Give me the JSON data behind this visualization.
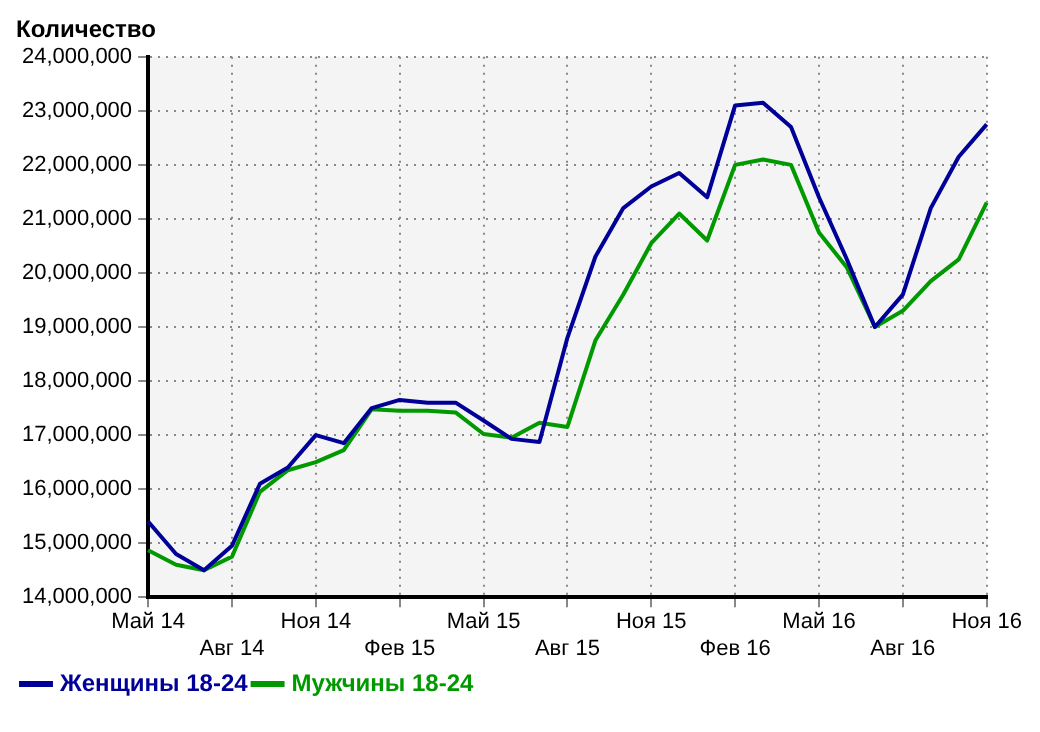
{
  "chart_data": {
    "type": "line",
    "title": "Количество",
    "categories": [
      "Май 14",
      null,
      null,
      "Авг 14",
      null,
      null,
      "Ноя 14",
      null,
      null,
      "Фев 15",
      null,
      null,
      "Май 15",
      null,
      null,
      "Авг 15",
      null,
      null,
      "Ноя 15",
      null,
      null,
      "Фев 16",
      null,
      null,
      "Май 16",
      null,
      null,
      "Авг 16",
      null,
      null,
      "Ноя 16"
    ],
    "series": [
      {
        "name": "Женщины 18-24",
        "color": "#000099",
        "values": [
          15400000,
          14800000,
          14500000,
          14950000,
          16100000,
          16400000,
          17000000,
          16850000,
          17500000,
          17650000,
          17600000,
          17600000,
          17270000,
          16930000,
          16870000,
          18800000,
          20300000,
          21200000,
          21600000,
          21850000,
          21400000,
          23100000,
          23150000,
          22700000,
          21400000,
          20250000,
          19000000,
          19600000,
          21200000,
          22150000,
          22750000
        ]
      },
      {
        "name": "Мужчины 18-24",
        "color": "#009900",
        "values": [
          14870000,
          14600000,
          14500000,
          14750000,
          15950000,
          16350000,
          16500000,
          16720000,
          17480000,
          17450000,
          17450000,
          17420000,
          17020000,
          16950000,
          17230000,
          17150000,
          18750000,
          19600000,
          20550000,
          21100000,
          20600000,
          22000000,
          22100000,
          22000000,
          20750000,
          20100000,
          19000000,
          19300000,
          19850000,
          20250000,
          21300000
        ]
      }
    ],
    "ylim": [
      14000000,
      24000000
    ],
    "yticks": [
      {
        "value": 14000000,
        "label": "14,000,000"
      },
      {
        "value": 15000000,
        "label": "15,000,000"
      },
      {
        "value": 16000000,
        "label": "16,000,000"
      },
      {
        "value": 17000000,
        "label": "17,000,000"
      },
      {
        "value": 18000000,
        "label": "18,000,000"
      },
      {
        "value": 19000000,
        "label": "19,000,000"
      },
      {
        "value": 20000000,
        "label": "20,000,000"
      },
      {
        "value": 21000000,
        "label": "21,000,000"
      },
      {
        "value": 22000000,
        "label": "22,000,000"
      },
      {
        "value": 23000000,
        "label": "23,000,000"
      },
      {
        "value": 24000000,
        "label": "24,000,000"
      }
    ],
    "grid": true,
    "legend": "bottom left",
    "marker": "none",
    "line_style": "solid"
  }
}
